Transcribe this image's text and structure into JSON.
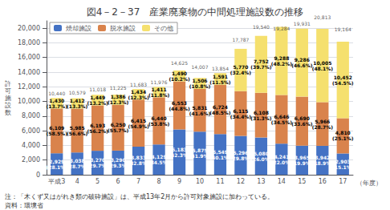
{
  "chart_data": {
    "type": "bar",
    "stacked": true,
    "title": "図4－2－37　産業廃棄物の中間処理施設数の推移",
    "ylabel": "許\n可\n施\n設\n数",
    "xlabel": "（年度）",
    "categories": [
      "平成3",
      "4",
      "5",
      "6",
      "7",
      "8",
      "9",
      "10",
      "11",
      "12",
      "13",
      "14",
      "15",
      "16",
      "17"
    ],
    "series": [
      {
        "name": "焼却施設",
        "color": "#4472c4",
        "values": [
          2929,
          3038,
          3270,
          3290,
          3833,
          4129,
          6183,
          5875,
          5549,
          5296,
          5080,
          4241,
          3965,
          3942,
          2903
        ],
        "value_labels": [
          "2,929\n(28.1%)",
          "3,038\n(28.7%)",
          "3,270\n(29.7%)",
          "3,290\n(29.3%)",
          "3,833\n(32.8%)",
          "4,129\n(34.5%)",
          "6,183\n(42.3%)",
          "5,875\n(41.9%)",
          "5,549\n(40.1%)",
          "5,296\n(29.8%)",
          "5,080\n(26.0%)",
          "4,241\n(22.0%)",
          "3,965\n(19.9%)",
          "3,942\n(18.9%)",
          "2,903\n(15.1%)"
        ]
      },
      {
        "name": "脱水施設",
        "color": "#d9834c",
        "values": [
          6109,
          5985,
          6193,
          6250,
          6415,
          6440,
          6553,
          5831,
          6724,
          6115,
          6108,
          6646,
          6690,
          5966,
          4810
        ],
        "value_labels": [
          "6,109\n(58.5%)",
          "5,985\n(56.6%)",
          "6,193\n(56.2%)",
          "6,250\n(55.7%)",
          "6,415\n(54.9%)",
          "6,440\n(53.8%)",
          "6,553\n(44.8%)",
          "5,831\n(41.6%)",
          "6,724\n(48.5%)",
          "6,115\n(34.4%)",
          "6,108\n(31.3%)",
          "6,646\n(34.5%)",
          "6,690\n(33.6%)",
          "5,966\n(28.7%)",
          "4,810\n(25.1%)"
        ]
      },
      {
        "name": "その他",
        "color": "#f5e06e",
        "values": [
          1430,
          1412,
          1449,
          1386,
          1434,
          1411,
          1490,
          1506,
          1591,
          5770,
          7752,
          9288,
          9286,
          10005,
          10452
        ],
        "value_labels": [
          "1,430\n(13.7%)",
          "1,412\n(13.3%)",
          "1,449\n(13.2%)",
          "1,386\n(12.3%)",
          "1,434\n(12.3%)",
          "1,411\n(11.8%)",
          "1,490\n(10.2%)",
          "1,506\n(10.8%)",
          "1,591\n(11.5%)",
          "5,770\n(32.4%)",
          "7,752\n(39.7%)",
          "9,288\n(48.2%)",
          "9,286\n(46.6%)",
          "10,005\n(48.1%)",
          "10,452\n(54.5%)"
        ]
      }
    ],
    "totals": {
      "values": [
        10440,
        10579,
        11018,
        11225,
        11683,
        11976,
        14625,
        14007,
        13854,
        17787,
        19540,
        19284,
        19931,
        20813,
        19164
      ],
      "value_labels": [
        "10,440",
        "10,579",
        "11,018",
        "11,225",
        "11,683",
        "11,976",
        "14,625",
        "14,007",
        "13,854",
        "17,787",
        "19,540",
        "19,284",
        "19,931",
        "20,813",
        "19,164"
      ]
    },
    "ylim": [
      0,
      21000
    ],
    "yticks": [
      0,
      {
        "value": 2000,
        "label": "2,000"
      },
      {
        "value": 4000,
        "label": "4,000"
      },
      {
        "value": 6000,
        "label": "6,000"
      },
      {
        "value": 8000,
        "label": "8,000"
      },
      {
        "value": 10000,
        "label": "10,000"
      },
      {
        "value": 12000,
        "label": "12,000"
      },
      {
        "value": 14000,
        "label": "14,000"
      },
      {
        "value": 16000,
        "label": "16,000"
      },
      {
        "value": 18000,
        "label": "18,000"
      },
      {
        "value": 20000,
        "label": "20,000"
      }
    ],
    "grid": true,
    "legend": "upper left",
    "data_labels": true,
    "annotations": [
      "注：「木くず又はがれき類の破砕施設」は、平成13年2月から許可対象施設に加わっている。",
      "資料：環境省"
    ]
  }
}
